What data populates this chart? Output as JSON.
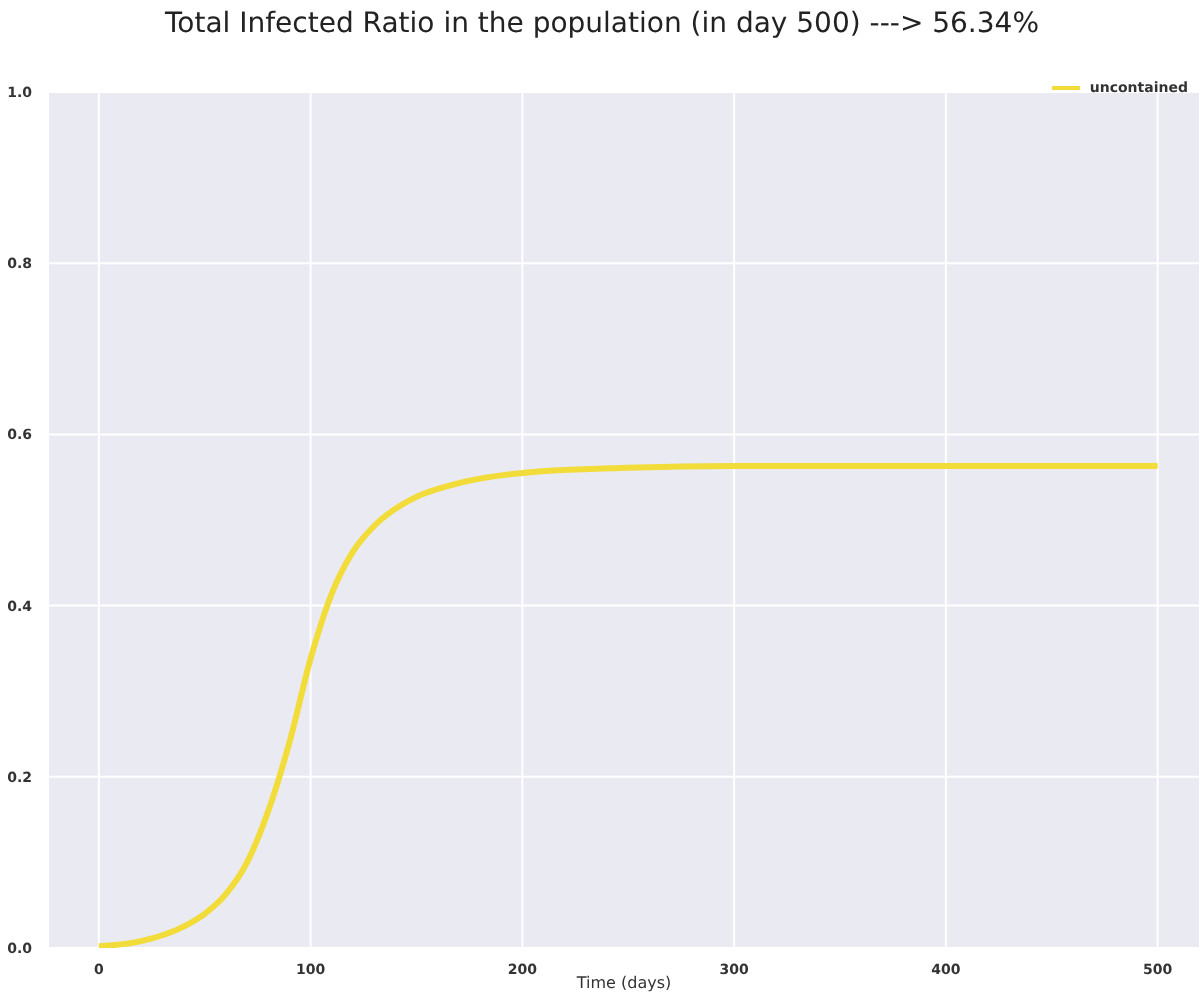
{
  "chart_data": {
    "type": "line",
    "title": "Total Infected Ratio in the population (in day 500) ---> 56.34%",
    "xlabel": "Time (days)",
    "x": [
      0,
      20,
      40,
      50,
      60,
      70,
      80,
      90,
      100,
      110,
      120,
      130,
      140,
      150,
      170,
      200,
      250,
      300,
      400,
      500
    ],
    "series": [
      {
        "name": "uncontained",
        "color": "#f2dc3a",
        "values": [
          0.002,
          0.008,
          0.025,
          0.04,
          0.063,
          0.1,
          0.16,
          0.24,
          0.338,
          0.414,
          0.463,
          0.493,
          0.513,
          0.527,
          0.543,
          0.555,
          0.561,
          0.563,
          0.563,
          0.563
        ]
      }
    ],
    "xlim": [
      -24,
      520
    ],
    "xticks": [
      0,
      100,
      200,
      300,
      400,
      500
    ],
    "ylim": [
      0,
      1
    ],
    "yticks": [
      {
        "value": 0,
        "label": "0.0"
      },
      0.2,
      0.4,
      0.6,
      0.8,
      {
        "value": 1,
        "label": "1.0"
      }
    ],
    "grid": true,
    "legend": "top right",
    "marker": "none",
    "line_style": "solid"
  }
}
